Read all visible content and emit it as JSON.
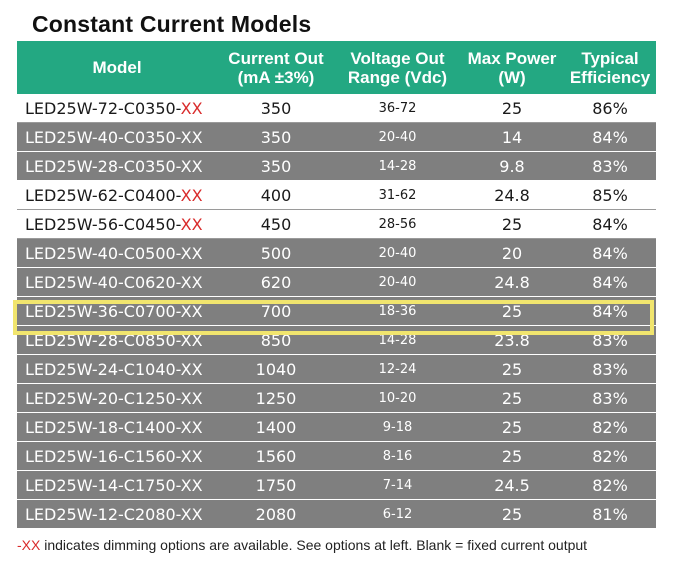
{
  "title": "Constant Current Models",
  "headers": {
    "model": "Model",
    "current_l1": "Current Out",
    "current_l2": "(mA ±3%)",
    "voltage_l1": "Voltage Out",
    "voltage_l2": "Range (Vdc)",
    "power_l1": "Max Power",
    "power_l2": "(W)",
    "eff_l1": "Typical",
    "eff_l2": "Efficiency"
  },
  "rows": [
    {
      "model_base": "LED25W-72-C0350-",
      "suffix": "XX",
      "current": "350",
      "voltage": "36-72",
      "power": "25",
      "eff": "86%",
      "style": "white"
    },
    {
      "model_base": "LED25W-40-C0350-",
      "suffix": "XX",
      "current": "350",
      "voltage": "20-40",
      "power": "14",
      "eff": "84%",
      "style": "gray"
    },
    {
      "model_base": "LED25W-28-C0350-",
      "suffix": "XX",
      "current": "350",
      "voltage": "14-28",
      "power": "9.8",
      "eff": "83%",
      "style": "gray"
    },
    {
      "model_base": "LED25W-62-C0400-",
      "suffix": "XX",
      "current": "400",
      "voltage": "31-62",
      "power": "24.8",
      "eff": "85%",
      "style": "white"
    },
    {
      "model_base": "LED25W-56-C0450-",
      "suffix": "XX",
      "current": "450",
      "voltage": "28-56",
      "power": "25",
      "eff": "84%",
      "style": "white"
    },
    {
      "model_base": "LED25W-40-C0500-",
      "suffix": "XX",
      "current": "500",
      "voltage": "20-40",
      "power": "20",
      "eff": "84%",
      "style": "gray"
    },
    {
      "model_base": "LED25W-40-C0620-",
      "suffix": "XX",
      "current": "620",
      "voltage": "20-40",
      "power": "24.8",
      "eff": "84%",
      "style": "gray"
    },
    {
      "model_base": "LED25W-36-C0700-",
      "suffix": "XX",
      "current": "700",
      "voltage": "18-36",
      "power": "25",
      "eff": "84%",
      "style": "gray"
    },
    {
      "model_base": "LED25W-28-C0850-",
      "suffix": "XX",
      "current": "850",
      "voltage": "14-28",
      "power": "23.8",
      "eff": "83%",
      "style": "gray"
    },
    {
      "model_base": "LED25W-24-C1040-",
      "suffix": "XX",
      "current": "1040",
      "voltage": "12-24",
      "power": "25",
      "eff": "83%",
      "style": "gray"
    },
    {
      "model_base": "LED25W-20-C1250-",
      "suffix": "XX",
      "current": "1250",
      "voltage": "10-20",
      "power": "25",
      "eff": "83%",
      "style": "gray"
    },
    {
      "model_base": "LED25W-18-C1400-",
      "suffix": "XX",
      "current": "1400",
      "voltage": "9-18",
      "power": "25",
      "eff": "82%",
      "style": "gray"
    },
    {
      "model_base": "LED25W-16-C1560-",
      "suffix": "XX",
      "current": "1560",
      "voltage": "8-16",
      "power": "25",
      "eff": "82%",
      "style": "gray"
    },
    {
      "model_base": "LED25W-14-C1750-",
      "suffix": "XX",
      "current": "1750",
      "voltage": "7-14",
      "power": "24.5",
      "eff": "82%",
      "style": "gray"
    },
    {
      "model_base": "LED25W-12-C2080-",
      "suffix": "XX",
      "current": "2080",
      "voltage": "6-12",
      "power": "25",
      "eff": "81%",
      "style": "gray"
    }
  ],
  "note": {
    "prefix": "-XX",
    "text": " indicates dimming options are available. See options at left. Blank = fixed current output"
  },
  "colors": {
    "header": "#23a882",
    "gray_row": "#7f7f7f",
    "highlight": "#f1e56e",
    "xx_red": "#d92b2b"
  }
}
